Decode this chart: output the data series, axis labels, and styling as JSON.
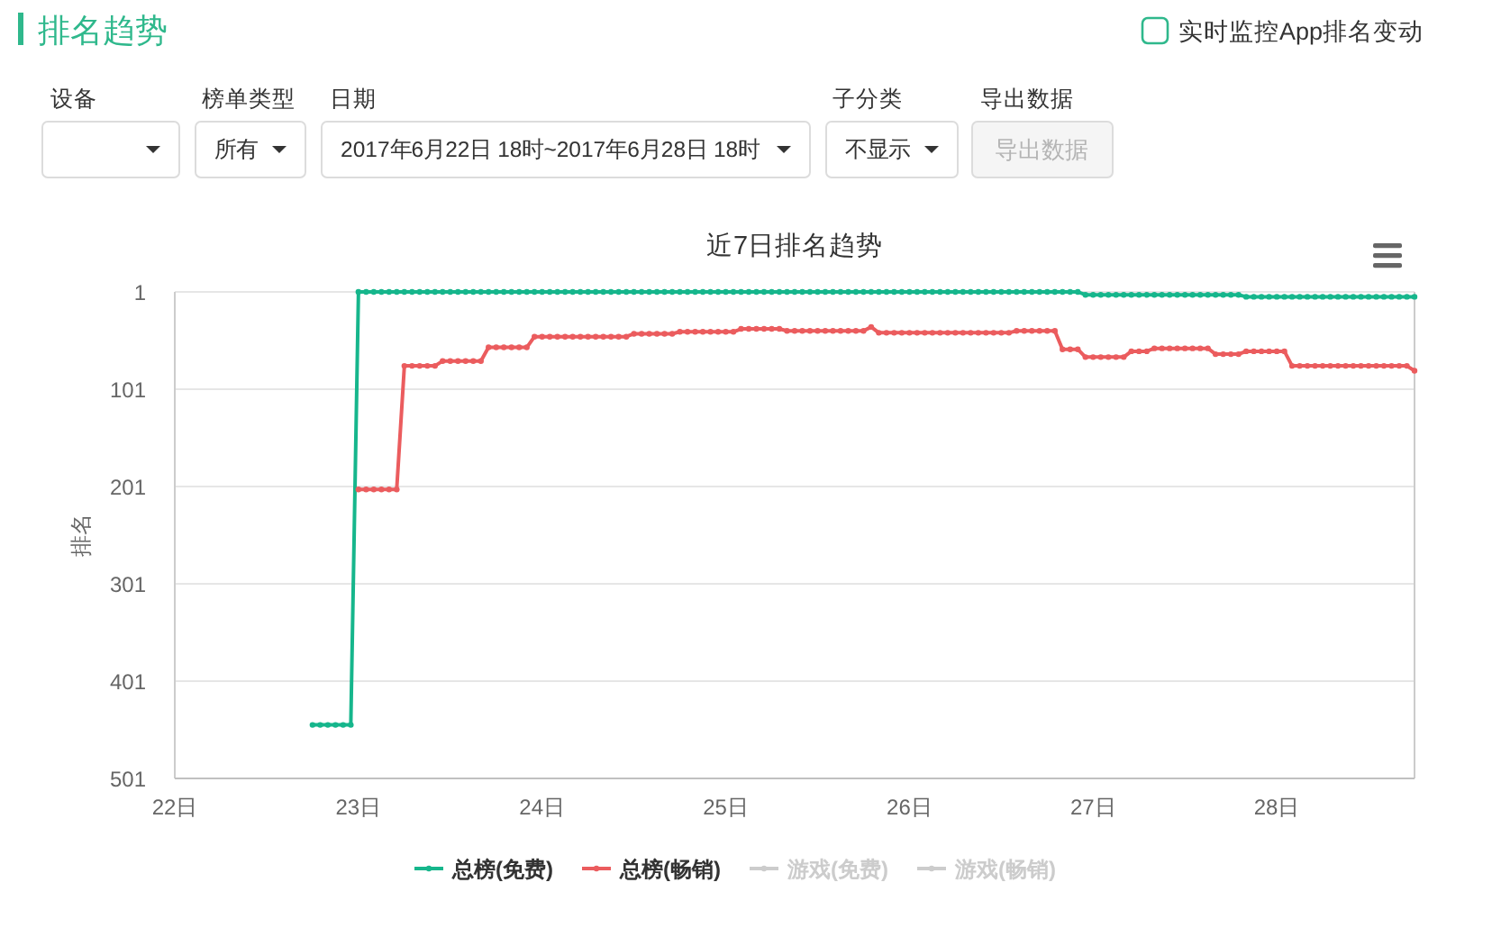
{
  "chart_data": {
    "type": "line",
    "title": "近7日排名趋势",
    "ylabel": "排名",
    "annotations": [
      "排名趋势",
      "实时监控App排名变动",
      "设备",
      "榜单类型",
      "所有",
      "日期",
      "2017年6月22日 18时~2017年6月28日 18时",
      "子分类",
      "不显示",
      "导出数据",
      "导出数据"
    ],
    "x": [
      "2017-06-22T18:00",
      "2017-06-22T19:00",
      "2017-06-22T20:00",
      "2017-06-22T21:00",
      "2017-06-22T22:00",
      "2017-06-22T23:00",
      "2017-06-23T00:00",
      "2017-06-23T01:00",
      "2017-06-23T02:00",
      "2017-06-23T03:00",
      "2017-06-23T04:00",
      "2017-06-23T05:00",
      "2017-06-23T06:00",
      "2017-06-23T07:00",
      "2017-06-23T08:00",
      "2017-06-23T09:00",
      "2017-06-23T10:00",
      "2017-06-23T11:00",
      "2017-06-23T12:00",
      "2017-06-23T13:00",
      "2017-06-23T14:00",
      "2017-06-23T15:00",
      "2017-06-23T16:00",
      "2017-06-23T17:00",
      "2017-06-23T18:00",
      "2017-06-23T19:00",
      "2017-06-23T20:00",
      "2017-06-23T21:00",
      "2017-06-23T22:00",
      "2017-06-23T23:00",
      "2017-06-24T00:00",
      "2017-06-24T01:00",
      "2017-06-24T02:00",
      "2017-06-24T03:00",
      "2017-06-24T04:00",
      "2017-06-24T05:00",
      "2017-06-24T06:00",
      "2017-06-24T07:00",
      "2017-06-24T08:00",
      "2017-06-24T09:00",
      "2017-06-24T10:00",
      "2017-06-24T11:00",
      "2017-06-24T12:00",
      "2017-06-24T13:00",
      "2017-06-24T14:00",
      "2017-06-24T15:00",
      "2017-06-24T16:00",
      "2017-06-24T17:00",
      "2017-06-24T18:00",
      "2017-06-24T19:00",
      "2017-06-24T20:00",
      "2017-06-24T21:00",
      "2017-06-24T22:00",
      "2017-06-24T23:00",
      "2017-06-25T00:00",
      "2017-06-25T01:00",
      "2017-06-25T02:00",
      "2017-06-25T03:00",
      "2017-06-25T04:00",
      "2017-06-25T05:00",
      "2017-06-25T06:00",
      "2017-06-25T07:00",
      "2017-06-25T08:00",
      "2017-06-25T09:00",
      "2017-06-25T10:00",
      "2017-06-25T11:00",
      "2017-06-25T12:00",
      "2017-06-25T13:00",
      "2017-06-25T14:00",
      "2017-06-25T15:00",
      "2017-06-25T16:00",
      "2017-06-25T17:00",
      "2017-06-25T18:00",
      "2017-06-25T19:00",
      "2017-06-25T20:00",
      "2017-06-25T21:00",
      "2017-06-25T22:00",
      "2017-06-25T23:00",
      "2017-06-26T00:00",
      "2017-06-26T01:00",
      "2017-06-26T02:00",
      "2017-06-26T03:00",
      "2017-06-26T04:00",
      "2017-06-26T05:00",
      "2017-06-26T06:00",
      "2017-06-26T07:00",
      "2017-06-26T08:00",
      "2017-06-26T09:00",
      "2017-06-26T10:00",
      "2017-06-26T11:00",
      "2017-06-26T12:00",
      "2017-06-26T13:00",
      "2017-06-26T14:00",
      "2017-06-26T15:00",
      "2017-06-26T16:00",
      "2017-06-26T17:00",
      "2017-06-26T18:00",
      "2017-06-26T19:00",
      "2017-06-26T20:00",
      "2017-06-26T21:00",
      "2017-06-26T22:00",
      "2017-06-26T23:00",
      "2017-06-27T00:00",
      "2017-06-27T01:00",
      "2017-06-27T02:00",
      "2017-06-27T03:00",
      "2017-06-27T04:00",
      "2017-06-27T05:00",
      "2017-06-27T06:00",
      "2017-06-27T07:00",
      "2017-06-27T08:00",
      "2017-06-27T09:00",
      "2017-06-27T10:00",
      "2017-06-27T11:00",
      "2017-06-27T12:00",
      "2017-06-27T13:00",
      "2017-06-27T14:00",
      "2017-06-27T15:00",
      "2017-06-27T16:00",
      "2017-06-27T17:00",
      "2017-06-27T18:00",
      "2017-06-27T19:00",
      "2017-06-27T20:00",
      "2017-06-27T21:00",
      "2017-06-27T22:00",
      "2017-06-27T23:00",
      "2017-06-28T00:00",
      "2017-06-28T01:00",
      "2017-06-28T02:00",
      "2017-06-28T03:00",
      "2017-06-28T04:00",
      "2017-06-28T05:00",
      "2017-06-28T06:00",
      "2017-06-28T07:00",
      "2017-06-28T08:00",
      "2017-06-28T09:00",
      "2017-06-28T10:00",
      "2017-06-28T11:00",
      "2017-06-28T12:00",
      "2017-06-28T13:00",
      "2017-06-28T14:00",
      "2017-06-28T15:00",
      "2017-06-28T16:00",
      "2017-06-28T17:00",
      "2017-06-28T18:00"
    ],
    "series": [
      {
        "name": "总榜(免费)",
        "color": "#16b68c",
        "values": [
          446,
          446,
          446,
          446,
          446,
          446,
          1,
          1,
          1,
          1,
          1,
          1,
          1,
          1,
          1,
          1,
          1,
          1,
          1,
          1,
          1,
          1,
          1,
          1,
          1,
          1,
          1,
          1,
          1,
          1,
          1,
          1,
          1,
          1,
          1,
          1,
          1,
          1,
          1,
          1,
          1,
          1,
          1,
          1,
          1,
          1,
          1,
          1,
          1,
          1,
          1,
          1,
          1,
          1,
          1,
          1,
          1,
          1,
          1,
          1,
          1,
          1,
          1,
          1,
          1,
          1,
          1,
          1,
          1,
          1,
          1,
          1,
          1,
          1,
          1,
          1,
          1,
          1,
          1,
          1,
          1,
          1,
          1,
          1,
          1,
          1,
          1,
          1,
          1,
          1,
          1,
          1,
          1,
          1,
          1,
          1,
          1,
          1,
          1,
          1,
          1,
          4,
          4,
          4,
          4,
          4,
          4,
          4,
          4,
          4,
          4,
          4,
          4,
          4,
          4,
          4,
          4,
          4,
          4,
          4,
          4,
          4,
          6,
          6,
          6,
          6,
          6,
          6,
          6,
          6,
          6,
          6,
          6,
          6,
          6,
          6,
          6,
          6,
          6,
          6,
          6,
          6,
          6,
          6,
          6
        ]
      },
      {
        "name": "总榜(畅销)",
        "color": "#eb5c5e",
        "values": [
          null,
          null,
          null,
          null,
          null,
          null,
          204,
          204,
          204,
          204,
          204,
          204,
          77,
          77,
          77,
          77,
          77,
          72,
          72,
          72,
          72,
          72,
          72,
          58,
          58,
          58,
          58,
          58,
          58,
          47,
          47,
          47,
          47,
          47,
          47,
          47,
          47,
          47,
          47,
          47,
          47,
          47,
          44,
          44,
          44,
          44,
          44,
          44,
          42,
          42,
          42,
          42,
          42,
          42,
          42,
          42,
          39,
          39,
          39,
          39,
          39,
          39,
          41,
          41,
          41,
          41,
          41,
          41,
          41,
          41,
          41,
          41,
          41,
          37,
          43,
          43,
          43,
          43,
          43,
          43,
          43,
          43,
          43,
          43,
          43,
          43,
          43,
          43,
          43,
          43,
          43,
          43,
          41,
          41,
          41,
          41,
          41,
          41,
          60,
          60,
          60,
          68,
          68,
          68,
          68,
          68,
          68,
          62,
          62,
          62,
          59,
          59,
          59,
          59,
          59,
          59,
          59,
          59,
          65,
          65,
          65,
          65,
          62,
          62,
          62,
          62,
          62,
          62,
          77,
          77,
          77,
          77,
          77,
          77,
          77,
          77,
          77,
          77,
          77,
          77,
          77,
          77,
          77,
          77,
          82
        ]
      },
      {
        "name": "游戏(免费)",
        "color": "#cccccc",
        "values": [
          null,
          null,
          null,
          null,
          null,
          null,
          null,
          null,
          null,
          null,
          null,
          null,
          null,
          null,
          null,
          null,
          null,
          null,
          null,
          null,
          null,
          null,
          null,
          null,
          null,
          null,
          null,
          null,
          null,
          null,
          null,
          null,
          null,
          null,
          null,
          null,
          null,
          null,
          null,
          null,
          null,
          null,
          null,
          null,
          null,
          null,
          null,
          null,
          null,
          null,
          null,
          null,
          null,
          null,
          null,
          null,
          null,
          null,
          null,
          null,
          null,
          null,
          null,
          null,
          null,
          null,
          null,
          null,
          null,
          null,
          null,
          null,
          null,
          null,
          null,
          null,
          null,
          null,
          null,
          null,
          null,
          null,
          null,
          null,
          null,
          null,
          null,
          null,
          null,
          null,
          null,
          null,
          null,
          null,
          null,
          null,
          null,
          null,
          null,
          null,
          null,
          null,
          null,
          null,
          null,
          null,
          null,
          null,
          null,
          null,
          null,
          null,
          null,
          null,
          null,
          null,
          null,
          null,
          null,
          null,
          null,
          null,
          null,
          null,
          null,
          null,
          null,
          null,
          null,
          null,
          null,
          null,
          null,
          null,
          null,
          null,
          null,
          null,
          null,
          null,
          null,
          null,
          null,
          null,
          null
        ]
      },
      {
        "name": "游戏(畅销)",
        "color": "#cccccc",
        "values": [
          null,
          null,
          null,
          null,
          null,
          null,
          null,
          null,
          null,
          null,
          null,
          null,
          null,
          null,
          null,
          null,
          null,
          null,
          null,
          null,
          null,
          null,
          null,
          null,
          null,
          null,
          null,
          null,
          null,
          null,
          null,
          null,
          null,
          null,
          null,
          null,
          null,
          null,
          null,
          null,
          null,
          null,
          null,
          null,
          null,
          null,
          null,
          null,
          null,
          null,
          null,
          null,
          null,
          null,
          null,
          null,
          null,
          null,
          null,
          null,
          null,
          null,
          null,
          null,
          null,
          null,
          null,
          null,
          null,
          null,
          null,
          null,
          null,
          null,
          null,
          null,
          null,
          null,
          null,
          null,
          null,
          null,
          null,
          null,
          null,
          null,
          null,
          null,
          null,
          null,
          null,
          null,
          null,
          null,
          null,
          null,
          null,
          null,
          null,
          null,
          null,
          null,
          null,
          null,
          null,
          null,
          null,
          null,
          null,
          null,
          null,
          null,
          null,
          null,
          null,
          null,
          null,
          null,
          null,
          null,
          null,
          null,
          null,
          null,
          null,
          null,
          null,
          null,
          null,
          null,
          null,
          null,
          null,
          null,
          null,
          null,
          null,
          null,
          null,
          null,
          null,
          null,
          null,
          null,
          null
        ]
      }
    ],
    "xlim": [
      "2017-06-22",
      "2017-06-28T18:00"
    ],
    "xticks": [
      {
        "value": "2017-06-22",
        "label": "22日"
      },
      {
        "value": "2017-06-23",
        "label": "23日"
      },
      {
        "value": "2017-06-24",
        "label": "24日"
      },
      {
        "value": "2017-06-25",
        "label": "25日"
      },
      {
        "value": "2017-06-26",
        "label": "26日"
      },
      {
        "value": "2017-06-27",
        "label": "27日"
      },
      {
        "value": "2017-06-28",
        "label": "28日"
      }
    ],
    "ylim": [
      501,
      1
    ],
    "yticks": [
      1,
      101,
      201,
      301,
      401,
      501
    ],
    "grid": "y",
    "legend": "bottom",
    "marker": "circle",
    "line_style": "solid"
  }
}
